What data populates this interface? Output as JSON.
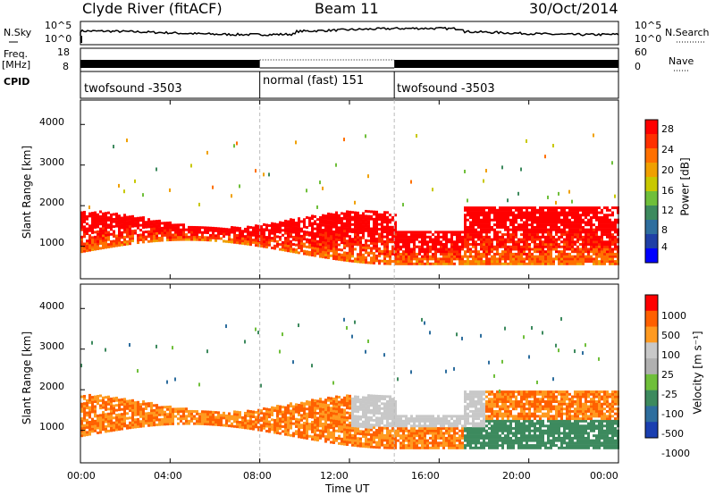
{
  "header": {
    "station": "Clyde River (fitACF)",
    "beam": "Beam 11",
    "date": "30/Oct/2014"
  },
  "top_panel": {
    "left_label": "N.Sky",
    "right_label": "N.Search",
    "yticks_left": [
      "10^5",
      "10^0"
    ],
    "yticks_right": [
      "10^5",
      "10^0"
    ]
  },
  "freq_panel": {
    "left_label_1": "Freq.",
    "left_label_2": "[MHz]",
    "yticks_left": [
      "18",
      "8"
    ],
    "right_label": "Nave",
    "yticks_right": [
      "60",
      "0"
    ]
  },
  "cpid_panel": {
    "label": "CPID",
    "segments": [
      {
        "start_hour": 0,
        "end_hour": 8,
        "text": "twofsound -3503"
      },
      {
        "start_hour": 8,
        "end_hour": 14,
        "text": "normal (fast) 151"
      },
      {
        "start_hour": 14,
        "end_hour": 24,
        "text": "twofsound -3503"
      }
    ]
  },
  "colors": {
    "power_scale": [
      "#0000ff",
      "#1f3fa6",
      "#2e6e9e",
      "#3d8a5e",
      "#6fbf3a",
      "#c8c800",
      "#f0a000",
      "#ff7000",
      "#ff3000",
      "#ff0000"
    ],
    "velocity_scale": [
      "#ff0000",
      "#ff6000",
      "#ff9a20",
      "#c8c8c8",
      "#b0b0b0",
      "#6fbf3a",
      "#3d8a5e",
      "#2e6e9e",
      "#1a3fb0"
    ]
  },
  "chart_data": [
    {
      "type": "heatmap",
      "name": "power",
      "ylabel": "Slant Range [km]",
      "yticks": [
        "1000",
        "2000",
        "3000",
        "4000"
      ],
      "ylim": [
        200,
        4600
      ],
      "xlim_hours": [
        0,
        24
      ],
      "colorbar_label": "Power [dB]",
      "colorbar_ticks": [
        "4",
        "8",
        "12",
        "16",
        "20",
        "24",
        "28"
      ],
      "colorbar_range": [
        0,
        32
      ]
    },
    {
      "type": "heatmap",
      "name": "velocity",
      "ylabel": "Slant Range [km]",
      "yticks": [
        "1000",
        "2000",
        "3000",
        "4000"
      ],
      "ylim": [
        200,
        4600
      ],
      "xlim_hours": [
        0,
        24
      ],
      "colorbar_label": "Velocity [m s⁻¹]",
      "colorbar_ticks": [
        "1000",
        "500",
        "100",
        "25",
        "-25",
        "-100",
        "-500",
        "-1000"
      ]
    }
  ],
  "xaxis": {
    "ticks": [
      "00:00",
      "04:00",
      "08:00",
      "12:00",
      "16:00",
      "20:00",
      "00:00"
    ],
    "tick_hours": [
      0,
      4,
      8,
      12,
      16,
      20,
      24
    ],
    "label": "Time UT"
  }
}
